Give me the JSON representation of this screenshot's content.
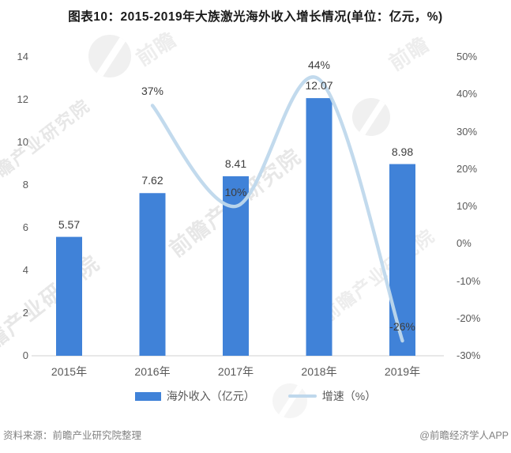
{
  "title": "图表10：2015-2019年大族激光海外收入增长情况(单位：亿元，%)",
  "chart_data": {
    "type": "bar",
    "subtype": "bar-line-combo",
    "categories": [
      "2015年",
      "2016年",
      "2017年",
      "2018年",
      "2019年"
    ],
    "series": [
      {
        "name": "海外收入（亿元）",
        "type": "bar",
        "axis": "left",
        "color": "#4082d8",
        "values": [
          5.57,
          7.62,
          8.41,
          12.07,
          8.98
        ],
        "labels": [
          "5.57",
          "7.62",
          "8.41",
          "12.07",
          "8.98"
        ]
      },
      {
        "name": "增速（%）",
        "type": "line",
        "axis": "right",
        "color": "#bfd8ec",
        "values": [
          null,
          37,
          10,
          44,
          -26
        ],
        "labels": [
          "",
          "37%",
          "10%",
          "44%",
          "-26%"
        ]
      }
    ],
    "left_axis": {
      "min": 0,
      "max": 14,
      "ticks": [
        "0",
        "2",
        "4",
        "6",
        "8",
        "10",
        "12",
        "14"
      ]
    },
    "right_axis": {
      "min": -30,
      "max": 50,
      "ticks": [
        "-30%",
        "-20%",
        "-10%",
        "0%",
        "10%",
        "20%",
        "30%",
        "40%",
        "50%"
      ]
    },
    "grid": false,
    "legend_position": "bottom",
    "title": "图表10：2015-2019年大族激光海外收入增长情况(单位：亿元，%)"
  },
  "legend": {
    "bar_label": "海外收入（亿元）",
    "line_label": "增速（%）"
  },
  "footer": {
    "source": "资料来源：前瞻产业研究院整理",
    "credit": "@前瞻经济学人APP"
  },
  "watermark": {
    "brand_text": "前瞻产业研究院",
    "logo_text": "前瞻"
  },
  "colors": {
    "bar": "#4082d8",
    "line": "#bfd8ec",
    "axis_line": "#d9d9d9",
    "tick_text": "#595959",
    "label_text": "#3d3d3d"
  }
}
